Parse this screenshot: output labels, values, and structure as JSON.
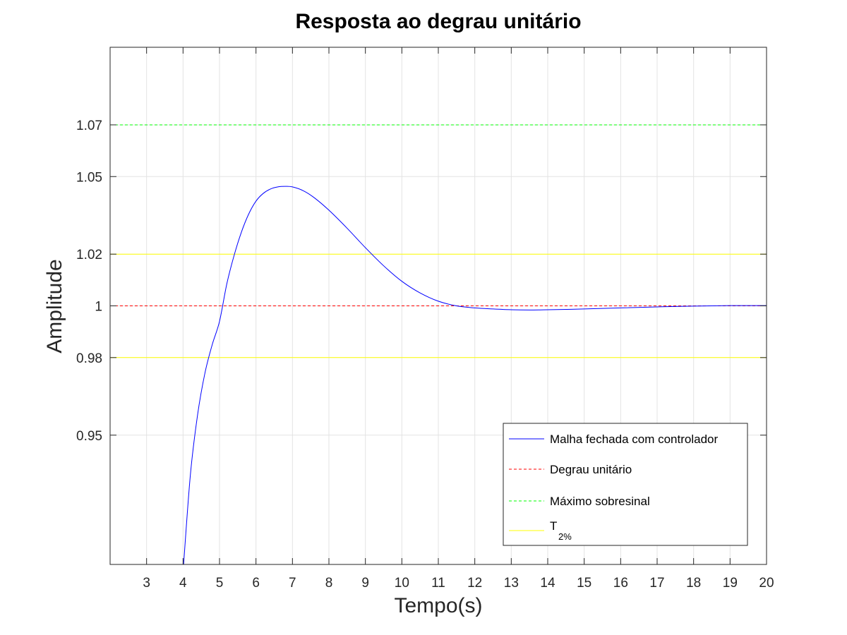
{
  "chart_data": {
    "type": "line",
    "title": "Resposta ao degrau unitário",
    "xlabel": "Tempo(s)",
    "ylabel": "Amplitude",
    "xlim": [
      2,
      20
    ],
    "ylim": [
      0.9,
      1.1
    ],
    "xticks": [
      3,
      4,
      5,
      6,
      7,
      8,
      9,
      10,
      11,
      12,
      13,
      14,
      15,
      16,
      17,
      18,
      19,
      20
    ],
    "yticks": [
      0.95,
      0.98,
      1,
      1.02,
      1.05,
      1.07
    ],
    "ytick_labels": [
      "0.95",
      "0.98",
      "1",
      "1.02",
      "1.05",
      "1.07"
    ],
    "grid": true,
    "legend_position": "bottom-right",
    "series": [
      {
        "name": "Malha fechada com controlador",
        "style": "solid",
        "color": "#0000ff",
        "x": [
          4.0,
          4.2,
          4.4,
          4.6,
          4.8,
          5.0,
          5.2,
          5.4,
          5.6,
          5.8,
          6.0,
          6.2,
          6.4,
          6.6,
          6.8,
          7.0,
          7.3,
          7.6,
          8.0,
          8.5,
          9.0,
          9.5,
          10.0,
          10.5,
          11.0,
          11.5,
          12.0,
          12.5,
          13.0,
          13.5,
          14.0,
          15.0,
          16.0,
          17.0,
          18.0,
          19.0,
          20.0
        ],
        "y": [
          0.897,
          0.9345,
          0.958,
          0.974,
          0.985,
          0.994,
          1.0085,
          1.0195,
          1.0285,
          1.0355,
          1.0405,
          1.0435,
          1.0452,
          1.046,
          1.0462,
          1.046,
          1.0445,
          1.0418,
          1.037,
          1.03,
          1.0225,
          1.0155,
          1.0095,
          1.005,
          1.0018,
          1.0,
          0.9992,
          0.9988,
          0.9985,
          0.9984,
          0.9985,
          0.9988,
          0.9992,
          0.9996,
          0.9999,
          1.0001,
          1.0001
        ]
      },
      {
        "name": "Degrau unitário",
        "style": "dashed",
        "color": "#ff0000",
        "x": [
          2,
          20
        ],
        "y": [
          1,
          1
        ]
      },
      {
        "name": "Máximo sobresinal",
        "style": "dashed",
        "color": "#00ff00",
        "x": [
          2,
          20
        ],
        "y": [
          1.07,
          1.07
        ]
      },
      {
        "name": "T",
        "name_subscript": "2%",
        "style": "solid",
        "color": "#ffff00",
        "x": [
          2,
          20
        ],
        "y": [
          1.02,
          1.02
        ]
      },
      {
        "name": "",
        "style": "solid",
        "color": "#ffff00",
        "x": [
          2,
          20
        ],
        "y": [
          0.98,
          0.98
        ]
      }
    ]
  }
}
